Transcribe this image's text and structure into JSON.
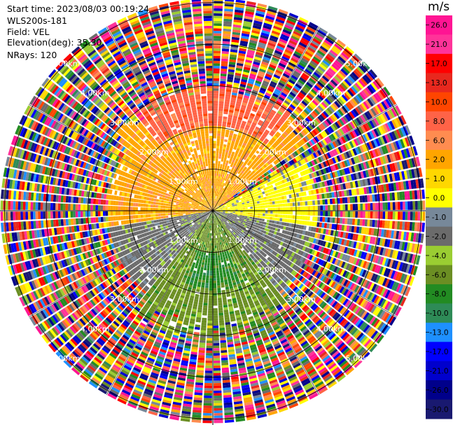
{
  "header": {
    "start_time": "Start time: 2023/08/03 00:19:24",
    "instrument": "WLS200s-181",
    "field": "Field: VEL",
    "elevation": "Elevation(deg): 35.30",
    "nrays": "NRays: 120"
  },
  "chart_data": {
    "type": "heatmap",
    "projection": "polar PPI",
    "field": "VEL",
    "n_rays": 120,
    "range_rings": [
      {
        "value_km": 1.0,
        "label": "1.00km"
      },
      {
        "value_km": 2.0,
        "label": "2.00km"
      },
      {
        "value_km": 3.0,
        "label": "3.00km"
      },
      {
        "value_km": 4.0,
        "label": "4.00km"
      },
      {
        "value_km": 5.0,
        "label": "5.00km"
      }
    ],
    "max_range_km": 5.1,
    "radial_spokes_deg": [
      0,
      30,
      60,
      90,
      120,
      150,
      180,
      210,
      240,
      270,
      300,
      330
    ],
    "sector_pattern": [
      {
        "az_deg": [
          305,
          55
        ],
        "range_km": [
          0.0,
          3.0
        ],
        "velocity_ms": 2.0,
        "desc": "north, receding"
      },
      {
        "az_deg": [
          320,
          40
        ],
        "range_km": [
          2.0,
          3.0
        ],
        "velocity_ms": 7.0
      },
      {
        "az_deg": [
          60,
          100
        ],
        "range_km": [
          0.0,
          2.5
        ],
        "velocity_ms": 0.0
      },
      {
        "az_deg": [
          100,
          140
        ],
        "range_km": [
          0.0,
          2.5
        ],
        "velocity_ms": -2.0
      },
      {
        "az_deg": [
          140,
          220
        ],
        "range_km": [
          0.0,
          3.5
        ],
        "velocity_ms": -6.5,
        "desc": "south, approaching"
      },
      {
        "az_deg": [
          160,
          200
        ],
        "range_km": [
          1.0,
          1.8
        ],
        "velocity_ms": -9.0
      },
      {
        "az_deg": [
          220,
          260
        ],
        "range_km": [
          0.0,
          2.5
        ],
        "velocity_ms": -3.0
      },
      {
        "az_deg": [
          260,
          305
        ],
        "range_km": [
          0.0,
          2.5
        ],
        "velocity_ms": 1.5
      },
      {
        "az_deg": [
          0,
          360
        ],
        "range_km": [
          3.0,
          5.1
        ],
        "velocity_ms": null,
        "desc": "noise"
      }
    ],
    "colorbar": {
      "unit": "m/s",
      "labels": [
        "26.0",
        "21.0",
        "17.0",
        "13.0",
        "10.0",
        "8.0",
        "6.0",
        "2.0",
        "1.0",
        "0.0",
        "-1.0",
        "-2.0",
        "-4.0",
        "-6.0",
        "-8.0",
        "-10.0",
        "-13.0",
        "-17.0",
        "-21.0",
        "-26.0",
        "-30.0"
      ],
      "colors": [
        "#ff1493",
        "#ff3399",
        "#ff0000",
        "#e8281e",
        "#ff4500",
        "#ff6347",
        "#ff8c50",
        "#ffa500",
        "#ffd700",
        "#ffff00",
        "#778899",
        "#6b6b6b",
        "#9acd32",
        "#6b8e23",
        "#228b22",
        "#2e8b57",
        "#1e90ff",
        "#0000ff",
        "#0000cd",
        "#00008b",
        "#191970"
      ]
    }
  }
}
